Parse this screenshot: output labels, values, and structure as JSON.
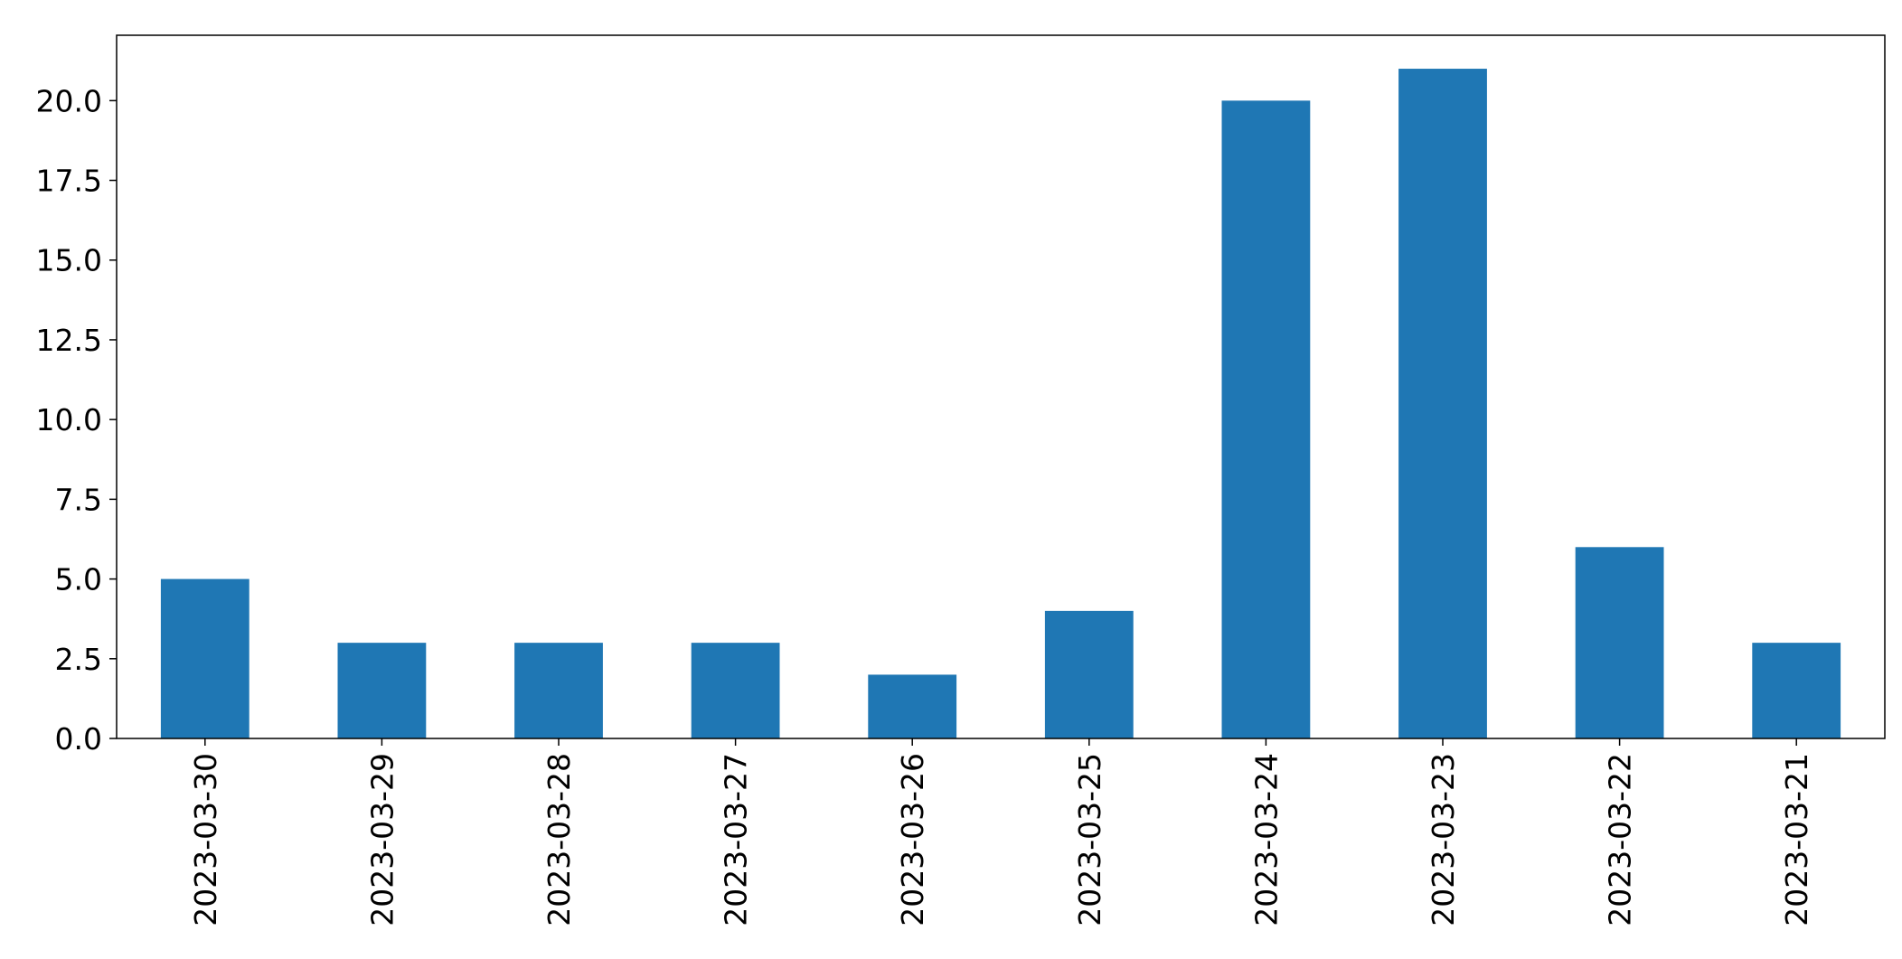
{
  "chart_data": {
    "type": "bar",
    "categories": [
      "2023-03-30",
      "2023-03-29",
      "2023-03-28",
      "2023-03-27",
      "2023-03-26",
      "2023-03-25",
      "2023-03-24",
      "2023-03-23",
      "2023-03-22",
      "2023-03-21"
    ],
    "values": [
      5,
      3,
      3,
      3,
      2,
      4,
      20,
      21,
      6,
      3
    ],
    "color": "#1f77b4",
    "ylim": [
      0,
      22.05
    ],
    "yticks": [
      {
        "value": 0,
        "label": "0.0"
      },
      2.5,
      {
        "value": 5,
        "label": "5.0"
      },
      7.5,
      {
        "value": 10,
        "label": "10.0"
      },
      12.5,
      {
        "value": 15,
        "label": "15.0"
      },
      17.5,
      {
        "value": 20,
        "label": "20.0"
      }
    ],
    "grid": false
  }
}
